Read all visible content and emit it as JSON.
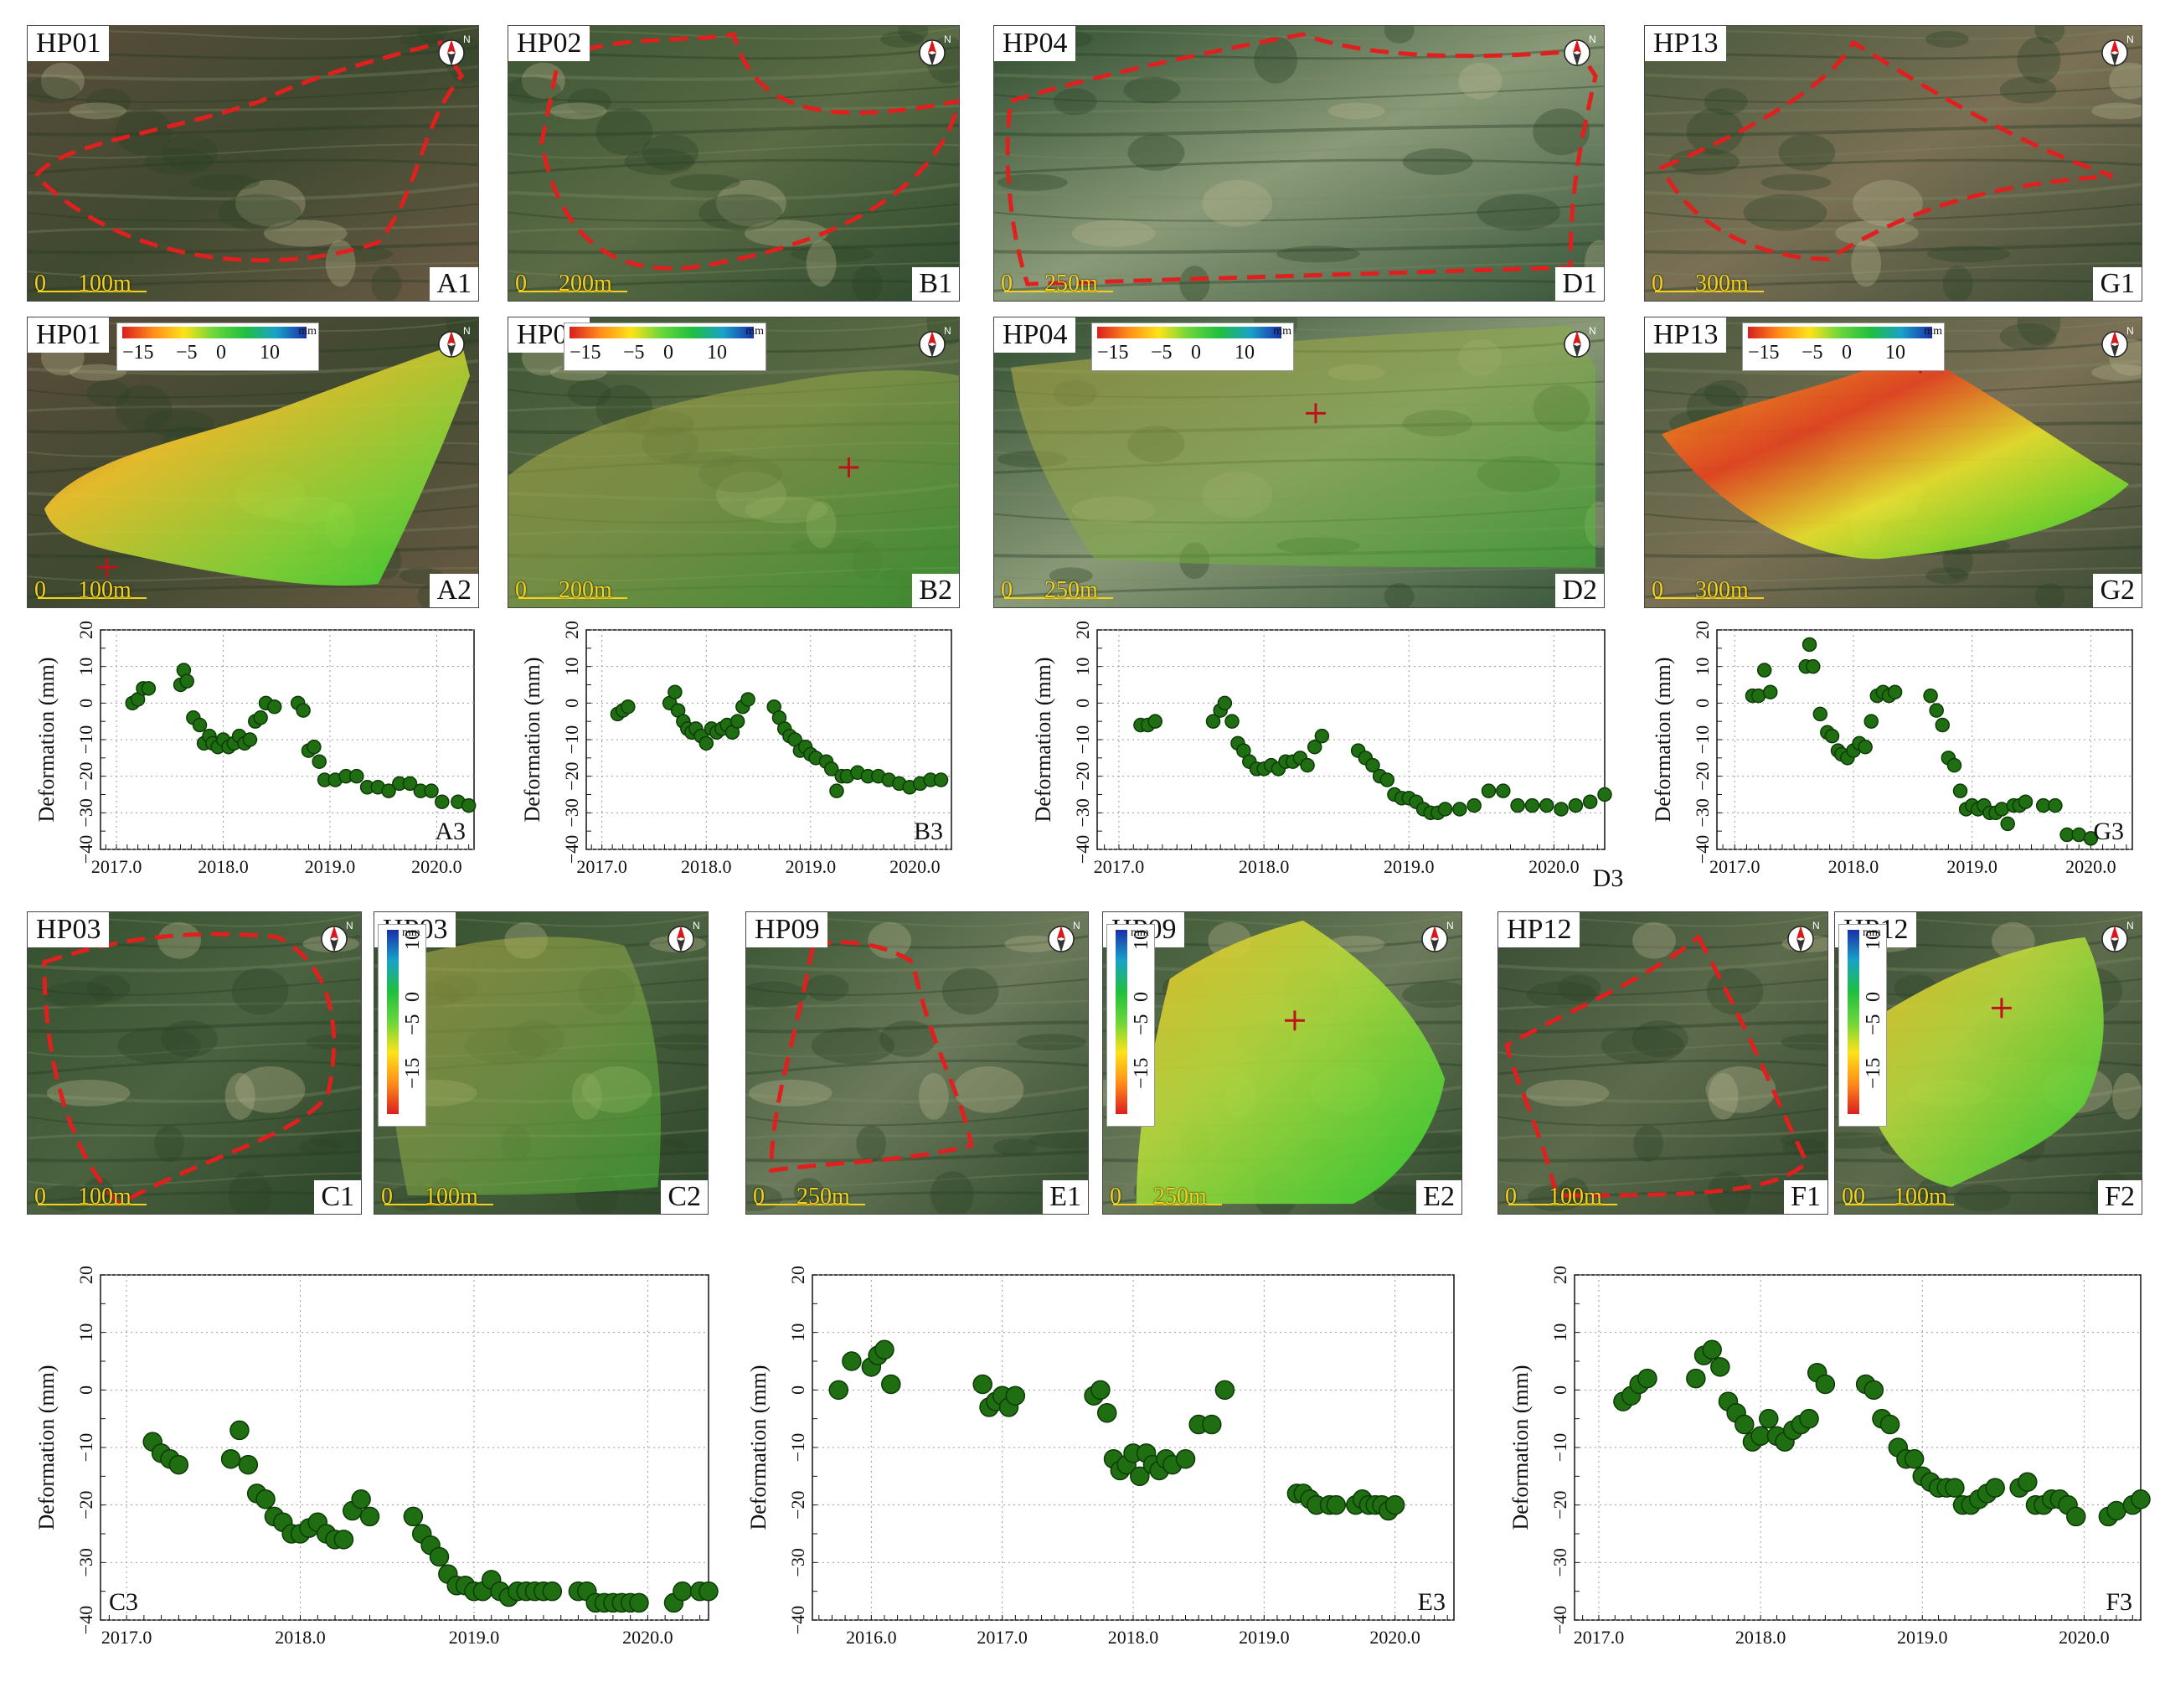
{
  "image_panels": [
    {
      "id": "A1",
      "site": "HP01",
      "scale": "100m",
      "scale_zero": "0",
      "kind": "optical",
      "north": "N"
    },
    {
      "id": "B1",
      "site": "HP02",
      "scale": "200m",
      "scale_zero": "0",
      "kind": "optical",
      "north": "N"
    },
    {
      "id": "D1",
      "site": "HP04",
      "scale": "250m",
      "scale_zero": "0",
      "kind": "optical",
      "north": "N"
    },
    {
      "id": "G1",
      "site": "HP13",
      "scale": "300m",
      "scale_zero": "0",
      "kind": "optical",
      "north": "N"
    },
    {
      "id": "A2",
      "site": "HP01",
      "scale": "100m",
      "scale_zero": "0",
      "kind": "insar",
      "north": "N"
    },
    {
      "id": "B2",
      "site": "HP02",
      "scale": "200m",
      "scale_zero": "0",
      "kind": "insar",
      "north": "N"
    },
    {
      "id": "D2",
      "site": "HP04",
      "scale": "250m",
      "scale_zero": "0",
      "kind": "insar",
      "north": "N"
    },
    {
      "id": "G2",
      "site": "HP13",
      "scale": "300m",
      "scale_zero": "0",
      "kind": "insar",
      "north": "N"
    },
    {
      "id": "C1",
      "site": "HP03",
      "scale": "100m",
      "scale_zero": "0",
      "kind": "optical",
      "north": "N"
    },
    {
      "id": "C2",
      "site": "HP03",
      "scale": "100m",
      "scale_zero": "0",
      "kind": "insar",
      "north": "N"
    },
    {
      "id": "E1",
      "site": "HP09",
      "scale": "250m",
      "scale_zero": "0",
      "kind": "optical",
      "north": "N"
    },
    {
      "id": "E2",
      "site": "HP09",
      "scale": "250m",
      "scale_zero": "0",
      "kind": "insar",
      "north": "N"
    },
    {
      "id": "F1",
      "site": "HP12",
      "scale": "100m",
      "scale_zero": "0",
      "kind": "optical",
      "north": "N"
    },
    {
      "id": "F2",
      "site": "HP12",
      "scale": "100m",
      "scale_zero": "00",
      "kind": "insar",
      "north": "N"
    }
  ],
  "colorbar": {
    "ticks": [
      "−15",
      "−5",
      "0",
      "10"
    ],
    "unit": "mm"
  },
  "colors": {
    "point": "#1f6e12",
    "point_edge": "#0d3a06",
    "dashed": "#e0201e",
    "scale": "#f2d21a"
  },
  "chart_data": [
    {
      "id": "A3",
      "type": "scatter",
      "ylabel": "Deformation (mm)",
      "ylim": [
        -40,
        20
      ],
      "xlim": [
        2016.85,
        2020.35
      ],
      "yticks": [
        "20",
        "10",
        "0",
        "−10",
        "−20",
        "−30",
        "−40"
      ],
      "xticks": [
        "2017.0",
        "2018.0",
        "2019.0",
        "2020.0"
      ],
      "xtick_values": [
        2017.0,
        2018.0,
        2019.0,
        2020.0
      ],
      "x": [
        2017.15,
        2017.2,
        2017.25,
        2017.3,
        2017.6,
        2017.63,
        2017.66,
        2017.72,
        2017.78,
        2017.82,
        2017.87,
        2017.9,
        2017.95,
        2018.0,
        2018.05,
        2018.1,
        2018.15,
        2018.2,
        2018.25,
        2018.3,
        2018.35,
        2018.4,
        2018.48,
        2018.7,
        2018.75,
        2018.8,
        2018.85,
        2018.9,
        2018.95,
        2019.05,
        2019.15,
        2019.25,
        2019.35,
        2019.45,
        2019.55,
        2019.65,
        2019.75,
        2019.85,
        2019.95,
        2020.05,
        2020.2,
        2020.3
      ],
      "y": [
        0,
        1,
        4,
        4,
        5,
        9,
        6,
        -4,
        -6,
        -11,
        -9,
        -11,
        -12,
        -10,
        -12,
        -11,
        -9,
        -11,
        -10,
        -5,
        -4,
        0,
        -1,
        0,
        -2,
        -13,
        -12,
        -16,
        -21,
        -21,
        -20,
        -20,
        -23,
        -23,
        -24,
        -22,
        -22,
        -24,
        -24,
        -27,
        -27,
        -28
      ]
    },
    {
      "id": "B3",
      "type": "scatter",
      "ylabel": "Deformation (mm)",
      "ylim": [
        -40,
        20
      ],
      "xlim": [
        2016.85,
        2020.35
      ],
      "yticks": [
        "20",
        "10",
        "0",
        "−10",
        "−20",
        "−30",
        "−40"
      ],
      "xticks": [
        "2017.0",
        "2018.0",
        "2019.0",
        "2020.0"
      ],
      "xtick_values": [
        2017.0,
        2018.0,
        2019.0,
        2020.0
      ],
      "x": [
        2017.15,
        2017.2,
        2017.25,
        2017.65,
        2017.7,
        2017.73,
        2017.78,
        2017.82,
        2017.86,
        2017.9,
        2017.95,
        2018.0,
        2018.05,
        2018.1,
        2018.15,
        2018.2,
        2018.25,
        2018.3,
        2018.35,
        2018.4,
        2018.65,
        2018.7,
        2018.75,
        2018.8,
        2018.85,
        2018.9,
        2018.95,
        2019.0,
        2019.05,
        2019.15,
        2019.2,
        2019.25,
        2019.3,
        2019.35,
        2019.45,
        2019.55,
        2019.65,
        2019.75,
        2019.85,
        2019.95,
        2020.05,
        2020.15,
        2020.25
      ],
      "y": [
        -3,
        -2,
        -1,
        0,
        3,
        -2,
        -5,
        -7,
        -8,
        -7,
        -9,
        -11,
        -7,
        -8,
        -7,
        -6,
        -8,
        -5,
        -1,
        1,
        -1,
        -4,
        -7,
        -9,
        -10,
        -13,
        -12,
        -14,
        -15,
        -16,
        -18,
        -24,
        -20,
        -20,
        -19,
        -20,
        -20,
        -21,
        -22,
        -23,
        -22,
        -21,
        -21
      ]
    },
    {
      "id": "D3",
      "type": "scatter",
      "ylabel": "Deformation (mm)",
      "ylim": [
        -40,
        20
      ],
      "xlim": [
        2016.85,
        2020.35
      ],
      "yticks": [
        "20",
        "10",
        "0",
        "−10",
        "−20",
        "−30",
        "−40"
      ],
      "xticks": [
        "2017.0",
        "2018.0",
        "2019.0",
        "2020.0"
      ],
      "xtick_values": [
        2017.0,
        2018.0,
        2019.0,
        2020.0
      ],
      "x": [
        2017.15,
        2017.2,
        2017.25,
        2017.65,
        2017.7,
        2017.73,
        2017.78,
        2017.82,
        2017.86,
        2017.9,
        2017.95,
        2018.0,
        2018.05,
        2018.1,
        2018.15,
        2018.2,
        2018.25,
        2018.3,
        2018.35,
        2018.4,
        2018.65,
        2018.7,
        2018.75,
        2018.8,
        2018.85,
        2018.9,
        2018.95,
        2019.0,
        2019.05,
        2019.1,
        2019.15,
        2019.2,
        2019.25,
        2019.35,
        2019.45,
        2019.55,
        2019.65,
        2019.75,
        2019.85,
        2019.95,
        2020.05,
        2020.15,
        2020.25,
        2020.35
      ],
      "y": [
        -6,
        -6,
        -5,
        -5,
        -2,
        0,
        -5,
        -11,
        -13,
        -16,
        -18,
        -18,
        -17,
        -18,
        -16,
        -16,
        -15,
        -17,
        -12,
        -9,
        -13,
        -15,
        -17,
        -20,
        -21,
        -25,
        -26,
        -26,
        -27,
        -29,
        -30,
        -30,
        -29,
        -29,
        -28,
        -24,
        -24,
        -28,
        -28,
        -28,
        -29,
        -28,
        -27,
        -25
      ]
    },
    {
      "id": "G3",
      "type": "scatter",
      "ylabel": "Deformation (mm)",
      "ylim": [
        -40,
        20
      ],
      "xlim": [
        2016.85,
        2020.35
      ],
      "yticks": [
        "20",
        "10",
        "0",
        "−10",
        "−20",
        "−30",
        "−40"
      ],
      "xticks": [
        "2017.0",
        "2018.0",
        "2019.0",
        "2020.0"
      ],
      "xtick_values": [
        2017.0,
        2018.0,
        2019.0,
        2020.0
      ],
      "x": [
        2017.15,
        2017.2,
        2017.25,
        2017.3,
        2017.6,
        2017.63,
        2017.66,
        2017.72,
        2017.78,
        2017.82,
        2017.87,
        2017.9,
        2017.95,
        2018.0,
        2018.05,
        2018.1,
        2018.15,
        2018.2,
        2018.25,
        2018.3,
        2018.35,
        2018.65,
        2018.7,
        2018.75,
        2018.8,
        2018.85,
        2018.9,
        2018.95,
        2019.0,
        2019.05,
        2019.1,
        2019.15,
        2019.2,
        2019.25,
        2019.3,
        2019.35,
        2019.4,
        2019.45,
        2019.6,
        2019.7,
        2019.8,
        2019.9,
        2020.0
      ],
      "y": [
        2,
        2,
        9,
        3,
        10,
        16,
        10,
        -3,
        -8,
        -9,
        -13,
        -14,
        -15,
        -13,
        -11,
        -12,
        -5,
        2,
        3,
        2,
        3,
        2,
        -2,
        -6,
        -15,
        -17,
        -24,
        -29,
        -28,
        -29,
        -28,
        -30,
        -30,
        -29,
        -33,
        -28,
        -28,
        -27,
        -28,
        -28,
        -36,
        -36,
        -37
      ]
    },
    {
      "id": "C3",
      "type": "scatter",
      "ylabel": "Deformation (mm)",
      "ylim": [
        -40,
        20
      ],
      "xlim": [
        2016.85,
        2020.35
      ],
      "yticks": [
        "20",
        "10",
        "0",
        "−10",
        "−20",
        "−30",
        "−40"
      ],
      "xticks": [
        "2017.0",
        "2018.0",
        "2019.0",
        "2020.0"
      ],
      "xtick_values": [
        2017.0,
        2018.0,
        2019.0,
        2020.0
      ],
      "x": [
        2017.15,
        2017.2,
        2017.25,
        2017.3,
        2017.6,
        2017.65,
        2017.7,
        2017.75,
        2017.8,
        2017.85,
        2017.9,
        2017.95,
        2018.0,
        2018.05,
        2018.1,
        2018.15,
        2018.2,
        2018.25,
        2018.3,
        2018.35,
        2018.4,
        2018.65,
        2018.7,
        2018.75,
        2018.8,
        2018.85,
        2018.9,
        2018.95,
        2019.0,
        2019.05,
        2019.1,
        2019.15,
        2019.2,
        2019.25,
        2019.3,
        2019.35,
        2019.4,
        2019.45,
        2019.6,
        2019.65,
        2019.7,
        2019.75,
        2019.8,
        2019.85,
        2019.9,
        2019.95,
        2020.15,
        2020.2,
        2020.3,
        2020.35
      ],
      "y": [
        -9,
        -11,
        -12,
        -13,
        -12,
        -7,
        -13,
        -18,
        -19,
        -22,
        -23,
        -25,
        -25,
        -24,
        -23,
        -25,
        -26,
        -26,
        -21,
        -19,
        -22,
        -22,
        -25,
        -27,
        -29,
        -32,
        -34,
        -34,
        -35,
        -35,
        -33,
        -35,
        -36,
        -35,
        -35,
        -35,
        -35,
        -35,
        -35,
        -35,
        -37,
        -37,
        -37,
        -37,
        -37,
        -37,
        -37,
        -35,
        -35,
        -35
      ]
    },
    {
      "id": "E3",
      "type": "scatter",
      "ylabel": "Deformation (mm)",
      "ylim": [
        -40,
        20
      ],
      "xlim": [
        2015.55,
        2020.45
      ],
      "yticks": [
        "20",
        "10",
        "0",
        "−10",
        "−20",
        "−30",
        "−40"
      ],
      "xticks": [
        "2016.0",
        "2017.0",
        "2018.0",
        "2019.0",
        "2020.0"
      ],
      "xtick_values": [
        2016.0,
        2017.0,
        2018.0,
        2019.0,
        2020.0
      ],
      "x": [
        2015.75,
        2015.85,
        2016.0,
        2016.05,
        2016.1,
        2016.15,
        2016.85,
        2016.9,
        2016.95,
        2017.0,
        2017.05,
        2017.1,
        2017.7,
        2017.75,
        2017.8,
        2017.85,
        2017.9,
        2017.95,
        2018.0,
        2018.05,
        2018.1,
        2018.15,
        2018.2,
        2018.25,
        2018.3,
        2018.4,
        2018.5,
        2018.6,
        2018.7,
        2019.25,
        2019.3,
        2019.35,
        2019.4,
        2019.5,
        2019.55,
        2019.7,
        2019.75,
        2019.8,
        2019.85,
        2019.9,
        2019.95,
        2020.0
      ],
      "y": [
        0,
        5,
        4,
        6,
        7,
        1,
        1,
        -3,
        -2,
        -1,
        -3,
        -1,
        -1,
        0,
        -4,
        -12,
        -14,
        -13,
        -11,
        -15,
        -11,
        -13,
        -14,
        -12,
        -13,
        -12,
        -6,
        -6,
        0,
        -18,
        -18,
        -19,
        -20,
        -20,
        -20,
        -20,
        -19,
        -20,
        -20,
        -20,
        -21,
        -20
      ]
    },
    {
      "id": "F3",
      "type": "scatter",
      "ylabel": "Deformation (mm)",
      "ylim": [
        -40,
        20
      ],
      "xlim": [
        2016.85,
        2020.35
      ],
      "yticks": [
        "20",
        "10",
        "0",
        "−10",
        "−20",
        "−30",
        "−40"
      ],
      "xticks": [
        "2017.0",
        "2018.0",
        "2019.0",
        "2020.0"
      ],
      "xtick_values": [
        2017.0,
        2018.0,
        2019.0,
        2020.0
      ],
      "x": [
        2017.15,
        2017.2,
        2017.25,
        2017.3,
        2017.6,
        2017.65,
        2017.7,
        2017.75,
        2017.8,
        2017.85,
        2017.9,
        2017.95,
        2018.0,
        2018.05,
        2018.1,
        2018.15,
        2018.2,
        2018.25,
        2018.3,
        2018.35,
        2018.4,
        2018.65,
        2018.7,
        2018.75,
        2018.8,
        2018.85,
        2018.9,
        2018.95,
        2019.0,
        2019.05,
        2019.1,
        2019.15,
        2019.2,
        2019.25,
        2019.3,
        2019.35,
        2019.4,
        2019.45,
        2019.6,
        2019.65,
        2019.7,
        2019.75,
        2019.8,
        2019.85,
        2019.9,
        2019.95,
        2020.15,
        2020.2,
        2020.3,
        2020.35
      ],
      "y": [
        -2,
        -1,
        1,
        2,
        2,
        6,
        7,
        4,
        -2,
        -4,
        -6,
        -9,
        -8,
        -5,
        -8,
        -9,
        -7,
        -6,
        -5,
        3,
        1,
        1,
        0,
        -5,
        -6,
        -10,
        -12,
        -12,
        -15,
        -16,
        -17,
        -17,
        -17,
        -20,
        -20,
        -19,
        -18,
        -17,
        -17,
        -16,
        -20,
        -20,
        -19,
        -19,
        -20,
        -22,
        -22,
        -21,
        -20,
        -19
      ]
    }
  ]
}
